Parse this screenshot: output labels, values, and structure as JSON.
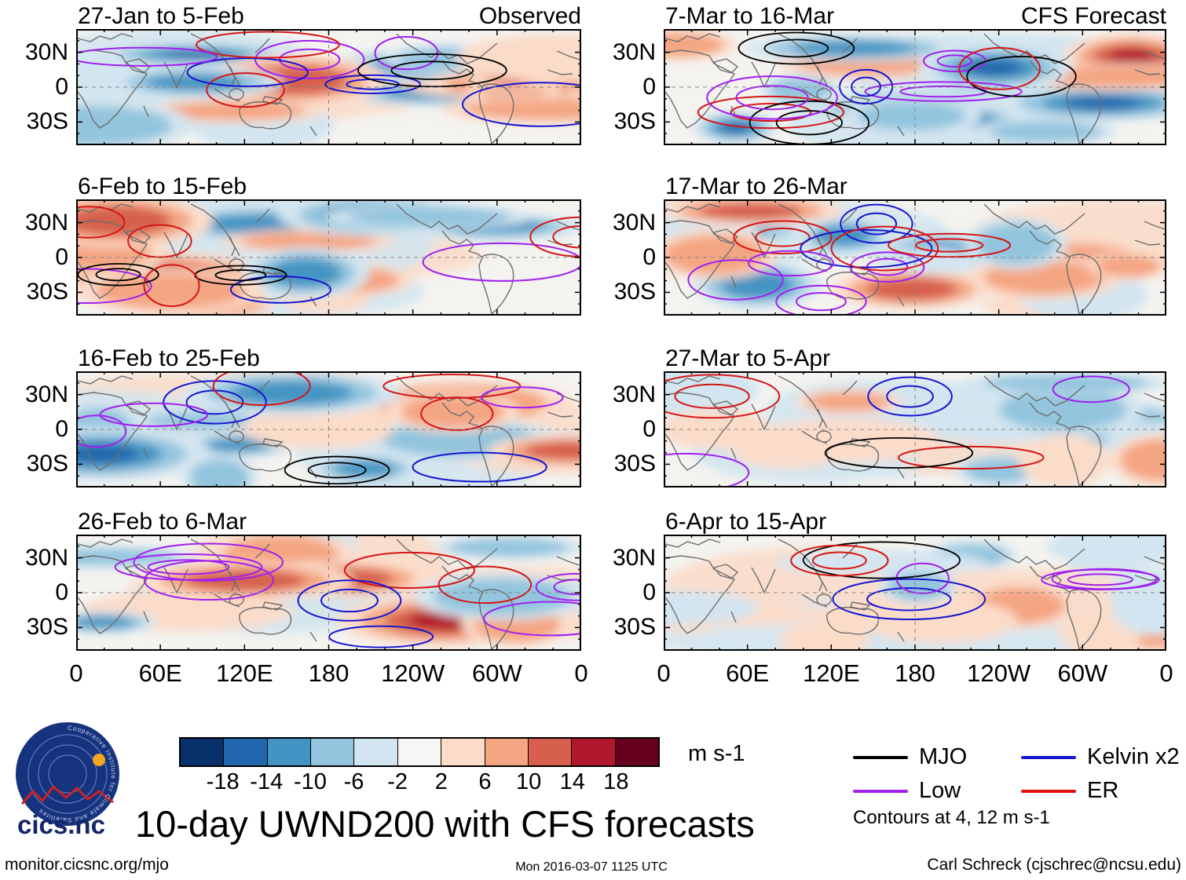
{
  "chart_data": {
    "type": "heatmap",
    "title": "10-day UWND200 with CFS forecasts",
    "columns": [
      "Observed",
      "CFS Forecast"
    ],
    "panels": [
      {
        "label": "27-Jan to 5-Feb",
        "column": "Observed",
        "corner": "Observed",
        "intensity": 1.0
      },
      {
        "label": "6-Feb to 15-Feb",
        "column": "Observed",
        "intensity": 1.0
      },
      {
        "label": "16-Feb to 25-Feb",
        "column": "Observed",
        "intensity": 1.0
      },
      {
        "label": "26-Feb to 6-Mar",
        "column": "Observed",
        "intensity": 1.0
      },
      {
        "label": "7-Mar to 16-Mar",
        "column": "CFS Forecast",
        "corner": "CFS Forecast",
        "intensity": 0.9
      },
      {
        "label": "17-Mar to 26-Mar",
        "column": "CFS Forecast",
        "intensity": 0.7
      },
      {
        "label": "27-Mar to 5-Apr",
        "column": "CFS Forecast",
        "intensity": 0.5
      },
      {
        "label": "6-Apr to 15-Apr",
        "column": "CFS Forecast",
        "intensity": 0.45
      }
    ],
    "yticks": [
      "30N",
      "0",
      "30S"
    ],
    "xticks": [
      "0",
      "60E",
      "120E",
      "180",
      "120W",
      "60W",
      "0"
    ],
    "colorbar": {
      "ticks": [
        "-18",
        "-14",
        "-10",
        "-6",
        "-2",
        "2",
        "6",
        "10",
        "14",
        "18"
      ],
      "units": "m s-1",
      "colors": [
        "#08306b",
        "#2166ac",
        "#4494c3",
        "#93c5de",
        "#d3e5f0",
        "#f7f6f4",
        "#fbdcc9",
        "#f4a582",
        "#d6604d",
        "#b2182b",
        "#67001f"
      ]
    },
    "legend": [
      {
        "label": "MJO",
        "color": "#000000"
      },
      {
        "label": "Kelvin x2",
        "color": "#1414cc"
      },
      {
        "label": "Low",
        "color": "#a020f0"
      },
      {
        "label": "ER",
        "color": "#dd1111"
      }
    ],
    "contours_note": "Contours at 4, 12 m s-1"
  },
  "logo": {
    "text": "cics.nc",
    "ring_text": "Cooperative Institute for Climate and Satellites"
  },
  "footer": {
    "url": "monitor.cicsnc.org/mjo",
    "timestamp": "Mon 2016-03-07 1125 UTC",
    "credit": "Carl Schreck (cjschrec@ncsu.edu)"
  }
}
